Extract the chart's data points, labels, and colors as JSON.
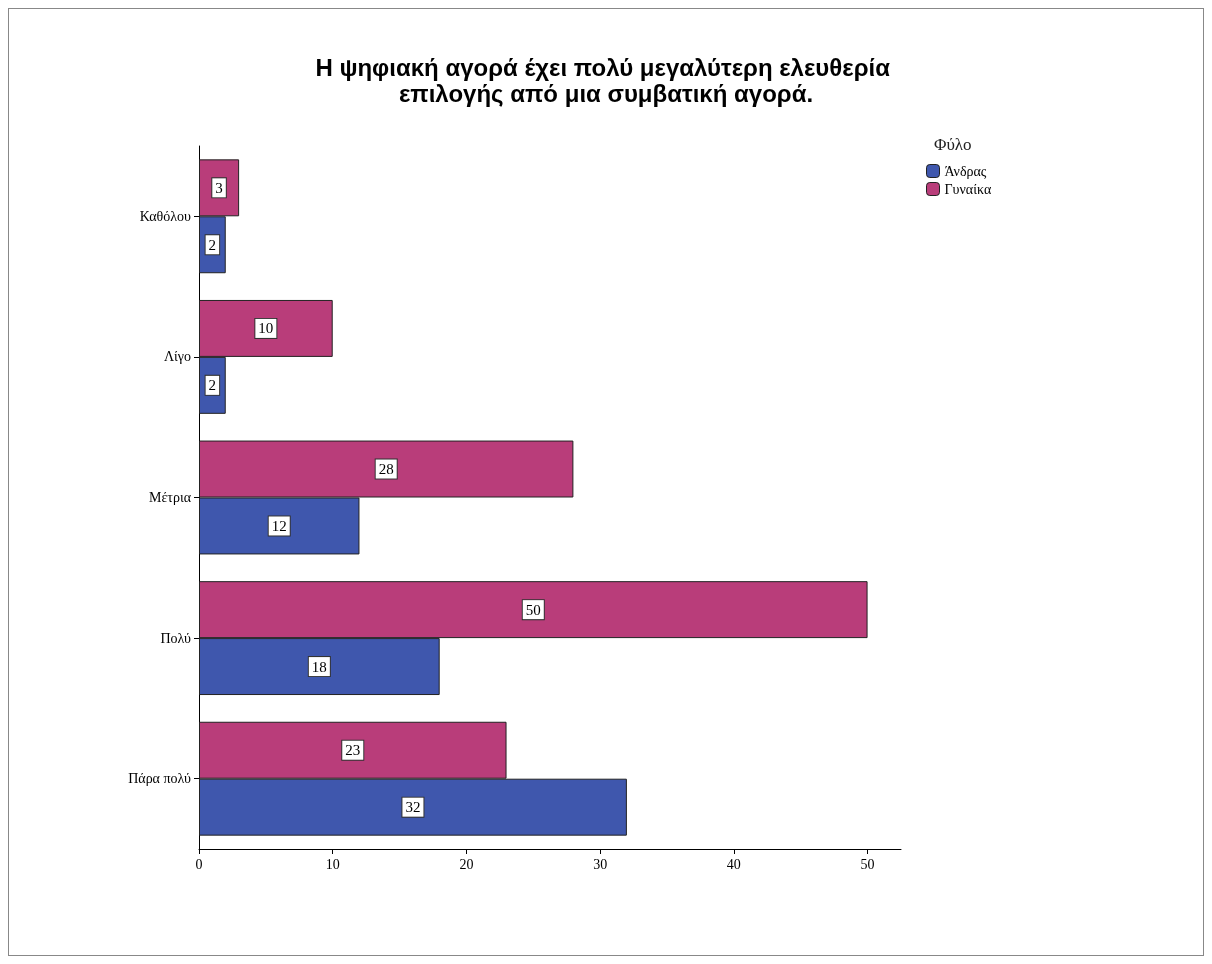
{
  "chart_data": {
    "type": "bar",
    "orientation": "horizontal",
    "title": "Η ψηφιακή αγορά έχει πολύ μεγαλύτερη ελευθερία επιλογής από μια συμβατική αγορά.",
    "categories": [
      "Καθόλου",
      "Λίγο",
      "Μέτρια",
      "Πολύ",
      "Πάρα πολύ"
    ],
    "series": [
      {
        "name": "Άνδρας",
        "color": "#3f57ad",
        "values": [
          2,
          2,
          12,
          18,
          32
        ]
      },
      {
        "name": "Γυναίκα",
        "color": "#b93d7a",
        "values": [
          3,
          10,
          28,
          50,
          23
        ]
      }
    ],
    "legend_title": "Φύλο",
    "legend": "top right",
    "xlim": [
      0,
      52.5
    ],
    "xticks": [
      0,
      10,
      20,
      30,
      40,
      50
    ],
    "grid": false,
    "data_labels": true
  }
}
